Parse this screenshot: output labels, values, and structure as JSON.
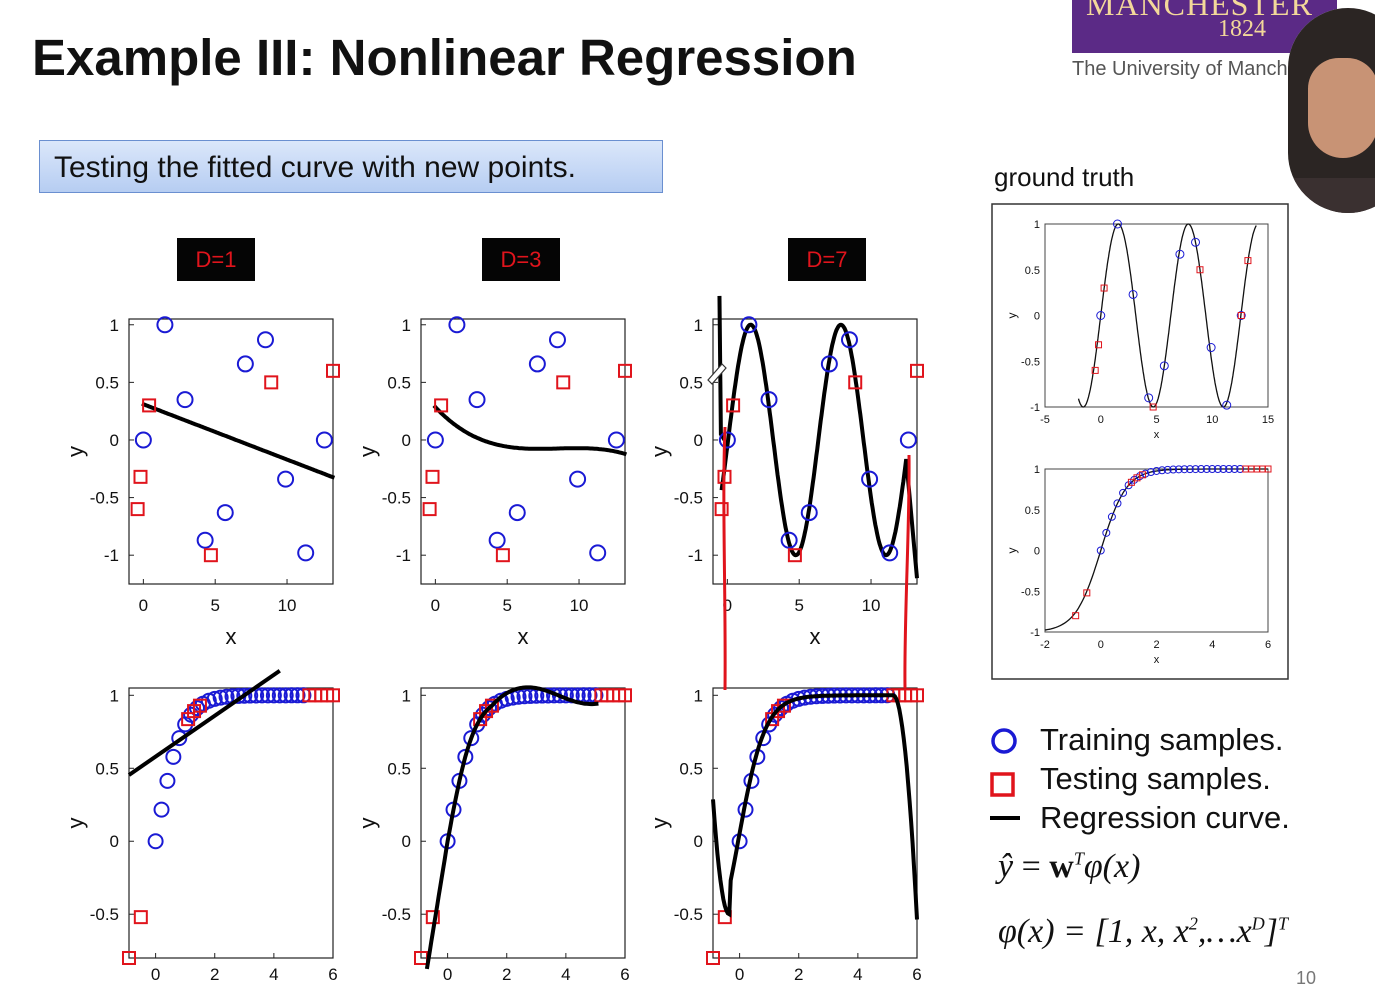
{
  "slide": {
    "title": "Example III: Nonlinear Regression",
    "logo_name": "MANCHESTER",
    "logo_year": "1824",
    "logo_sub": "The University of Manche",
    "banner": "Testing the fitted curve with new points.",
    "ground_truth_title": "ground truth",
    "page_number": "10",
    "colors": {
      "training": "#1a1ad4",
      "testing": "#e0141c",
      "curve": "#000000",
      "banner": "#c6d8f5",
      "logo": "#5b2a86"
    }
  },
  "degree_labels": [
    "D=1",
    "D=3",
    "D=7"
  ],
  "legend": [
    {
      "marker": "circle",
      "label": "Training samples."
    },
    {
      "marker": "square",
      "label": "Testing samples."
    },
    {
      "marker": "line",
      "label": "Regression curve."
    }
  ],
  "formulas": {
    "f1": {
      "yhat": "ŷ",
      "eq": " = ",
      "w": "w",
      "T": "T",
      "rest": "φ(x)"
    },
    "f2": {
      "lhs": "φ(x) = [1, x, x",
      "sq": "2",
      "mid": ",…x",
      "D": "D",
      "close": "]",
      "T": "T"
    }
  },
  "chart_data": [
    {
      "type": "scatter",
      "panel": "sine-D1",
      "xlabel": "x",
      "ylabel": "y",
      "xlim": [
        -1,
        13.2
      ],
      "ylim": [
        -1.25,
        1.05
      ],
      "xticks": [
        "0",
        "5",
        "10"
      ],
      "yticks": [
        "1",
        "0.5",
        "0",
        "-0.5",
        "-1"
      ],
      "train": [
        [
          0,
          0
        ],
        [
          1.5,
          1
        ],
        [
          2.9,
          0.35
        ],
        [
          4.3,
          -0.87
        ],
        [
          5.7,
          -0.63
        ],
        [
          7.1,
          0.66
        ],
        [
          8.5,
          0.87
        ],
        [
          9.9,
          -0.34
        ],
        [
          11.3,
          -0.98
        ],
        [
          12.6,
          0
        ]
      ],
      "test": [
        [
          -0.4,
          -0.6
        ],
        [
          -0.2,
          -0.32
        ],
        [
          0.4,
          0.3
        ],
        [
          4.7,
          -1
        ],
        [
          8.9,
          0.5
        ],
        [
          13.2,
          0.6
        ]
      ],
      "curve": {
        "degree": 1,
        "coef": [
          0.31,
          -0.048
        ]
      }
    },
    {
      "type": "scatter",
      "panel": "sine-D3",
      "xlabel": "x",
      "ylabel": "y",
      "xlim": [
        -1,
        13.2
      ],
      "ylim": [
        -1.25,
        1.05
      ],
      "xticks": [
        "0",
        "5",
        "10"
      ],
      "yticks": [
        "1",
        "0.5",
        "0",
        "-0.5",
        "-1"
      ],
      "train": [
        [
          0,
          0
        ],
        [
          1.5,
          1
        ],
        [
          2.9,
          0.35
        ],
        [
          4.3,
          -0.87
        ],
        [
          5.7,
          -0.63
        ],
        [
          7.1,
          0.66
        ],
        [
          8.5,
          0.87
        ],
        [
          9.9,
          -0.34
        ],
        [
          11.3,
          -0.98
        ],
        [
          12.6,
          0
        ]
      ],
      "test": [
        [
          -0.4,
          -0.6
        ],
        [
          -0.2,
          -0.32
        ],
        [
          0.4,
          0.3
        ],
        [
          4.7,
          -1
        ],
        [
          8.9,
          0.5
        ],
        [
          13.2,
          0.6
        ]
      ],
      "curve": {
        "degree": 3,
        "coef": [
          0.285,
          -0.1327,
          0.01592,
          -0.000621
        ]
      }
    },
    {
      "type": "scatter",
      "panel": "sine-D7",
      "xlabel": "x",
      "ylabel": "y",
      "xlim": [
        -1,
        13.2
      ],
      "ylim": [
        -1.25,
        1.05
      ],
      "xticks": [
        "0",
        "5",
        "10"
      ],
      "yticks": [
        "1",
        "0.5",
        "0",
        "-0.5",
        "-1"
      ],
      "train": [
        [
          0,
          0
        ],
        [
          1.5,
          1
        ],
        [
          2.9,
          0.35
        ],
        [
          4.3,
          -0.87
        ],
        [
          5.7,
          -0.63
        ],
        [
          7.1,
          0.66
        ],
        [
          8.5,
          0.87
        ],
        [
          9.9,
          -0.34
        ],
        [
          11.3,
          -0.98
        ],
        [
          12.6,
          0
        ]
      ],
      "test": [
        [
          -0.4,
          -0.6
        ],
        [
          -0.2,
          -0.32
        ],
        [
          0.4,
          0.3
        ],
        [
          4.7,
          -1
        ],
        [
          8.9,
          0.5
        ],
        [
          13.2,
          0.6
        ]
      ],
      "curve": {
        "degree": 7,
        "shape": "fits sine through points, diverges beyond data"
      }
    },
    {
      "type": "scatter",
      "panel": "sigmoid-D1",
      "xlim": [
        -0.9,
        6
      ],
      "ylim": [
        -0.8,
        1.05
      ],
      "xticks": [
        "0",
        "2",
        "4",
        "6"
      ],
      "yticks": [
        "1",
        "0.5",
        "0",
        "-0.5"
      ],
      "ylabel": "y",
      "curve": {
        "degree": 1,
        "coef": [
          0.58,
          0.14
        ]
      }
    },
    {
      "type": "scatter",
      "panel": "sigmoid-D3",
      "xlim": [
        -0.9,
        6
      ],
      "ylim": [
        -0.8,
        1.05
      ],
      "xticks": [
        "0",
        "2",
        "4",
        "6"
      ],
      "yticks": [
        "1",
        "0.5",
        "0",
        "-0.5"
      ],
      "ylabel": "y",
      "curve": {
        "degree": 3,
        "shape": "rising then slight wobble near 1"
      }
    },
    {
      "type": "scatter",
      "panel": "sigmoid-D7",
      "xlim": [
        -0.9,
        6
      ],
      "ylim": [
        -0.8,
        1.05
      ],
      "xticks": [
        "0",
        "2",
        "4",
        "6"
      ],
      "yticks": [
        "1",
        "0.5",
        "0",
        "-0.5"
      ],
      "ylabel": "y",
      "curve": {
        "degree": 7,
        "shape": "dips below -0.5 left, drops at right edge"
      }
    },
    {
      "type": "scatter",
      "panel": "ground-truth-sine",
      "xlabel": "x",
      "ylabel": "y",
      "xlim": [
        -5,
        15
      ],
      "ylim": [
        -1,
        1
      ],
      "xticks": [
        "-5",
        "0",
        "5",
        "10",
        "15"
      ],
      "yticks": [
        "1",
        "0.5",
        "0",
        "-0.5",
        "-1"
      ]
    },
    {
      "type": "scatter",
      "panel": "ground-truth-sigmoid",
      "xlabel": "x",
      "ylabel": "y",
      "xlim": [
        -2,
        6
      ],
      "ylim": [
        -1,
        1
      ],
      "xticks": [
        "-2",
        "0",
        "2",
        "4",
        "6"
      ],
      "yticks": [
        "1",
        "0.5",
        "0",
        "-0.5",
        "-1"
      ]
    }
  ]
}
